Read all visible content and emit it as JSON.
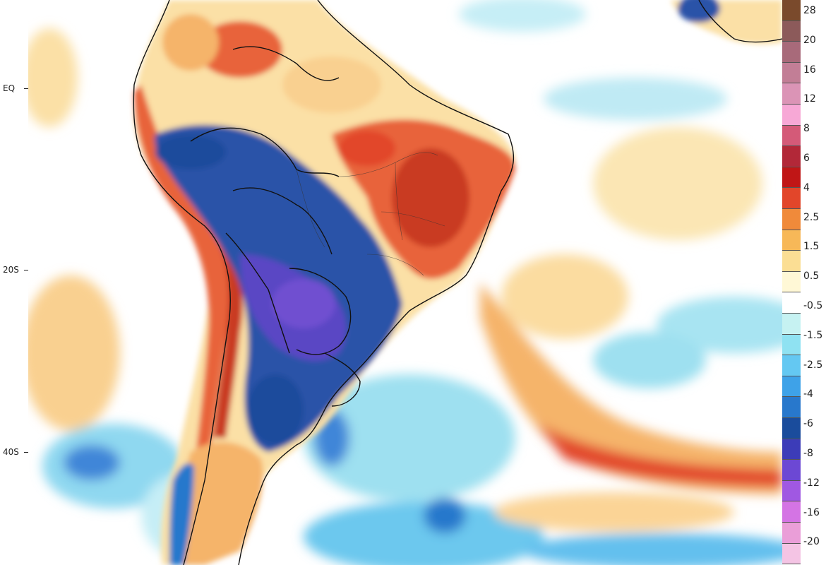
{
  "latitude_labels": [
    {
      "label": "EQ"
    },
    {
      "label": "20S"
    },
    {
      "label": "40S"
    }
  ],
  "colorbar": {
    "colors": [
      "#7a4a2c",
      "#8c5a5a",
      "#a86a7a",
      "#c27e96",
      "#db94b6",
      "#f7a8d6",
      "#d45a78",
      "#b22838",
      "#c01616",
      "#e2462a",
      "#f08a3a",
      "#f7b858",
      "#fbde94",
      "#fff8d6",
      "#ffffff",
      "#c6f2f2",
      "#8fe2f2",
      "#64c8f2",
      "#3ea2e8",
      "#2878cc",
      "#1a4c9c",
      "#3c3cb8",
      "#6c48d4",
      "#a058e2",
      "#d474e4",
      "#ea9ed8",
      "#f4c4e4"
    ],
    "labels": [
      "28",
      "20",
      "16",
      "12",
      "8",
      "6",
      "4",
      "2.5",
      "1.5",
      "0.5",
      "-0.5",
      "-1.5",
      "-2.5",
      "-4",
      "-6",
      "-8",
      "-12",
      "-16",
      "-20"
    ]
  },
  "map": {
    "ocean_color": "#ffffff",
    "anomaly_colors": {
      "strong_cold": "#2a52a8",
      "extreme_cold": "#5a46c4",
      "cold": "#3f86d8",
      "cool": "#8fdcf0",
      "slightly_cool": "#c8f0f6",
      "warm": "#e8643a",
      "hot": "#c93a22",
      "mild_warm": "#f5b46a",
      "slightly_warm": "#fbe0a6"
    }
  }
}
